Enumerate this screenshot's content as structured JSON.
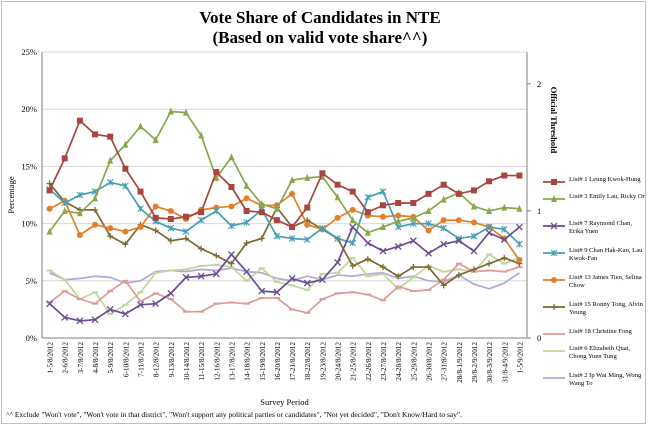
{
  "title_line1": "Vote Share of Candidates in NTE",
  "title_line2": "(Based on valid vote share^^)",
  "footnote": "^^ Exclude \"Won't vote\", \"Won't vote in that district\", \"Won't support any political parties or candidates\", \"Not yet decided\", \"Don't Know/Hard to say\".",
  "chart_data": {
    "type": "line",
    "title": "Vote Share of Candidates in NTE",
    "subtitle": "(Based on valid vote share^^)",
    "xlabel": "Survey Period",
    "ylabel": "Percentage",
    "y2label": "Official Threshold",
    "ylim": [
      0,
      25
    ],
    "yticks": [
      "0%",
      "5%",
      "10%",
      "15%",
      "20%",
      "25%"
    ],
    "y2lim": [
      0,
      2.25
    ],
    "y2ticks": [
      "0",
      "1",
      "2"
    ],
    "legend_position": "right",
    "x": [
      "1-5/8/2012",
      "2-6/8/2012",
      "3-7/8/2012",
      "4-8/8/2012",
      "5-9/8/2012",
      "6-10/8/2012",
      "7-11/8/2012",
      "8-12/8/2012",
      "9-13/8/2012",
      "10-14/8/2012",
      "11-15/8/2012",
      "12-16/8/2012",
      "13-17/8/2012",
      "14-18/8/2012",
      "15-19/8/2012",
      "16-20/8/2012",
      "17-21/8/2012",
      "18-22/8/2012",
      "19-23/8/2012",
      "20-24/8/2012",
      "21-25/8/2012",
      "22-26/8/2012",
      "23-27/8/2012",
      "24-28/8/2012",
      "25-29/8/2012",
      "26-30/8/2012",
      "27-31/8/2012",
      "28/8-1/9/2012",
      "29/8-2/9/2012",
      "30/8-3/9/2012",
      "31/8-4/9/2012",
      "1-5/9/2012"
    ],
    "series": [
      {
        "name": "List# 1 Leung Kwok-Hung",
        "color": "#a94440",
        "marker": "square",
        "values": [
          12.9,
          15.7,
          19.0,
          17.8,
          17.6,
          14.8,
          12.8,
          10.5,
          10.4,
          10.6,
          11.0,
          14.5,
          13.2,
          11.1,
          11.0,
          10.3,
          9.7,
          11.4,
          14.4,
          13.4,
          12.8,
          11.0,
          11.6,
          11.8,
          11.8,
          12.6,
          13.4,
          12.6,
          12.9,
          13.7,
          14.2,
          14.2
        ]
      },
      {
        "name": "List# 3 Emily Lau, Ricky Or",
        "color": "#8aa64b",
        "marker": "triangle",
        "values": [
          9.3,
          11.1,
          10.9,
          12.2,
          15.5,
          16.9,
          18.5,
          17.3,
          19.8,
          19.7,
          17.7,
          14.0,
          15.8,
          13.3,
          11.7,
          11.3,
          13.8,
          14.0,
          14.1,
          12.3,
          10.3,
          9.2,
          9.7,
          10.2,
          10.5,
          11.1,
          12.1,
          12.7,
          11.5,
          11.1,
          11.4,
          11.3
        ]
      },
      {
        "name": "List# 7 Raymond Chan, Erika Yuen",
        "color": "#6b4c93",
        "marker": "cross",
        "values": [
          3.0,
          1.8,
          1.5,
          1.6,
          2.5,
          2.1,
          2.9,
          3.0,
          3.9,
          5.3,
          5.4,
          5.6,
          7.3,
          5.8,
          4.1,
          4.0,
          5.2,
          4.8,
          5.1,
          6.6,
          9.7,
          8.3,
          7.6,
          8.0,
          8.5,
          7.4,
          8.2,
          8.5,
          7.6,
          9.2,
          8.6,
          9.7
        ]
      },
      {
        "name": "List# 9 Chan Hak-Kan, Lau Kwok-Fan",
        "color": "#45a0b5",
        "marker": "star",
        "values": [
          13.0,
          11.8,
          12.5,
          12.8,
          13.6,
          13.3,
          11.3,
          10.2,
          9.6,
          9.3,
          10.3,
          11.1,
          9.8,
          10.1,
          11.2,
          8.9,
          8.7,
          8.6,
          9.6,
          8.7,
          8.3,
          12.3,
          12.8,
          9.7,
          10.0,
          10.0,
          9.6,
          8.7,
          8.9,
          9.7,
          9.5,
          8.2
        ]
      },
      {
        "name": "List# 13 James Tien, Selina Chow",
        "color": "#e57e2b",
        "marker": "circle",
        "values": [
          11.3,
          12.0,
          9.0,
          9.9,
          9.6,
          9.3,
          9.7,
          11.5,
          11.1,
          10.4,
          11.2,
          11.4,
          11.5,
          12.2,
          11.6,
          11.6,
          12.6,
          9.9,
          9.5,
          10.5,
          11.2,
          10.7,
          10.6,
          10.7,
          10.6,
          9.4,
          10.3,
          10.3,
          10.1,
          9.7,
          8.7,
          6.8
        ]
      },
      {
        "name": "List# 15 Ronny Tong, Alvin Yeung",
        "color": "#7a6a2e",
        "marker": "plus",
        "values": [
          13.5,
          11.9,
          11.2,
          11.2,
          8.9,
          8.2,
          9.9,
          9.4,
          8.5,
          8.7,
          7.8,
          7.2,
          6.5,
          8.3,
          8.7,
          11.4,
          9.7,
          10.3,
          9.5,
          8.7,
          6.3,
          6.9,
          6.2,
          5.4,
          6.2,
          6.2,
          4.6,
          5.5,
          6.0,
          6.5,
          7.0,
          6.5
        ]
      },
      {
        "name": "List# 18 Christine Fong",
        "color": "#de9a9a",
        "marker": "dash",
        "values": [
          3.1,
          4.1,
          3.4,
          3.0,
          4.1,
          5.0,
          3.2,
          3.9,
          3.4,
          2.3,
          2.3,
          3.0,
          3.1,
          3.0,
          3.5,
          3.5,
          2.5,
          2.2,
          3.4,
          3.9,
          4.0,
          3.8,
          3.3,
          4.5,
          4.1,
          4.2,
          5.1,
          6.5,
          5.8,
          5.9,
          5.8,
          6.2
        ]
      },
      {
        "name": "List# 6 Elizabeth Quat, Chong Yuen Tung",
        "color": "#bfd79e",
        "marker": "dash",
        "values": [
          5.9,
          5.1,
          3.4,
          4.0,
          2.1,
          2.9,
          4.0,
          5.7,
          5.9,
          6.0,
          6.3,
          6.4,
          6.2,
          5.0,
          6.1,
          4.9,
          4.6,
          4.2,
          5.6,
          5.7,
          7.0,
          5.4,
          5.6,
          4.3,
          5.3,
          6.3,
          5.8,
          6.0,
          5.8,
          7.3,
          6.5,
          7.0
        ]
      },
      {
        "name": "List# 2 Ip Wai Ming, Wong Wang To",
        "color": "#b4a7d6",
        "marker": "none",
        "values": [
          5.7,
          5.1,
          5.2,
          5.4,
          5.3,
          4.8,
          5.0,
          5.8,
          5.9,
          5.8,
          6.0,
          5.9,
          6.1,
          5.8,
          5.7,
          5.2,
          5.0,
          5.4,
          5.1,
          5.5,
          5.4,
          5.6,
          5.7,
          5.2,
          5.4,
          5.0,
          4.9,
          5.5,
          4.7,
          4.3,
          4.8,
          5.7
        ]
      }
    ]
  }
}
